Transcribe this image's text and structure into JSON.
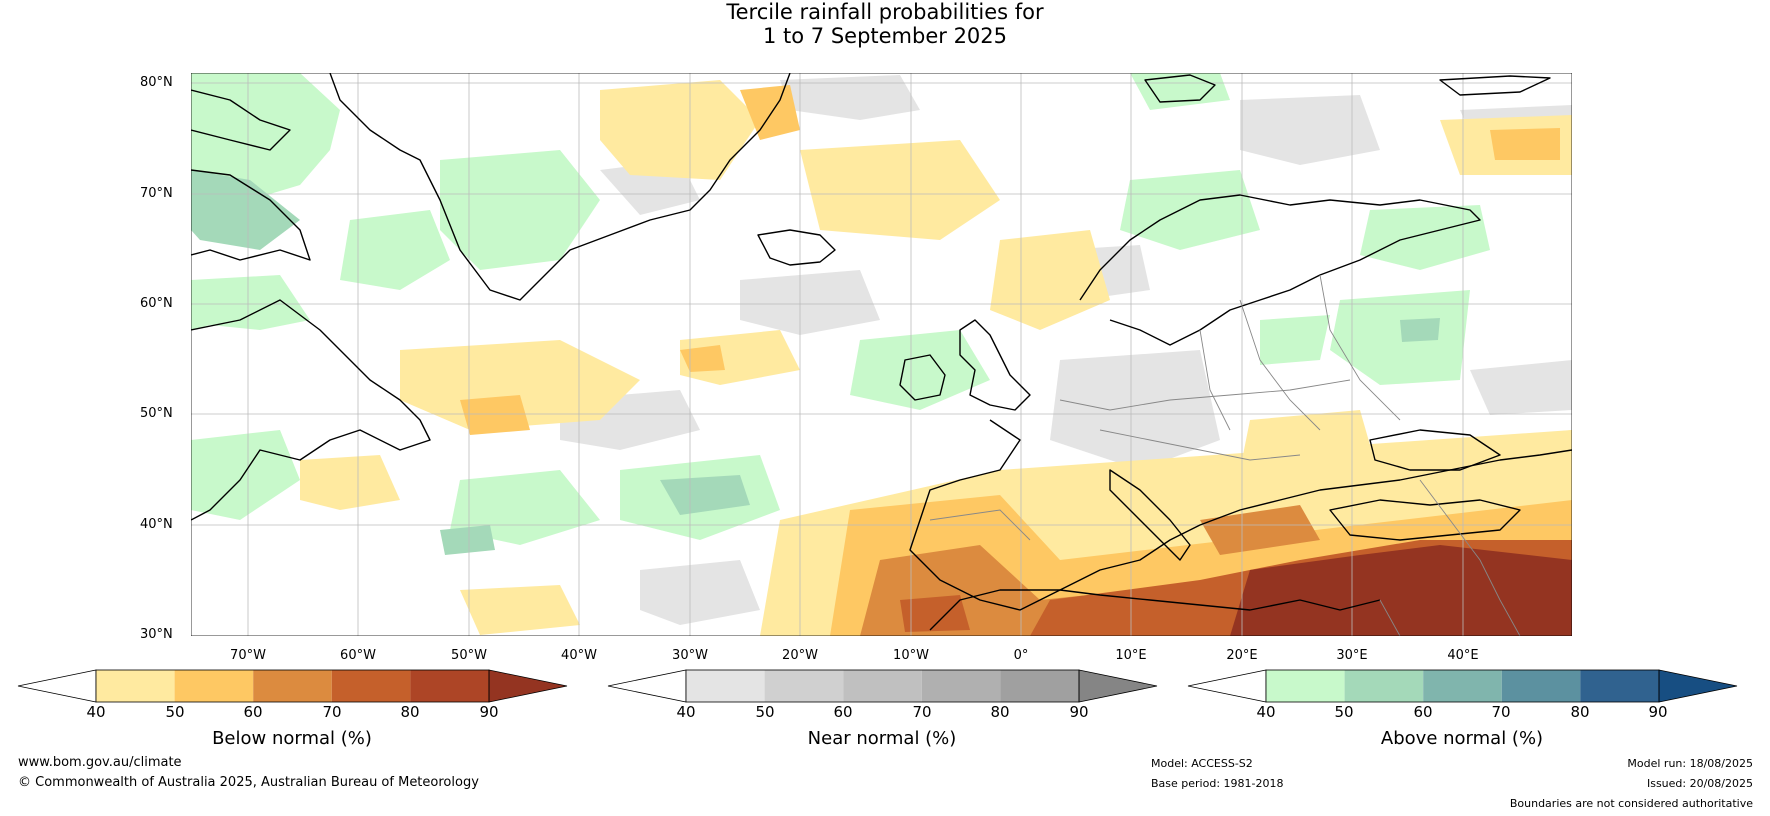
{
  "title": {
    "line1": "Tercile rainfall probabilities for",
    "line2": "1 to 7 September 2025"
  },
  "axes": {
    "lat_labels": [
      "80°N",
      "70°N",
      "60°N",
      "50°N",
      "40°N",
      "30°N"
    ],
    "lon_labels": [
      "70°W",
      "60°W",
      "50°W",
      "40°W",
      "30°W",
      "20°W",
      "10°W",
      "0°",
      "10°E",
      "20°E",
      "30°E",
      "40°E"
    ]
  },
  "colorbars": [
    {
      "title": "Below normal (%)",
      "ticks": [
        "40",
        "50",
        "60",
        "70",
        "80",
        "90"
      ],
      "colors": [
        "#ffffff",
        "#ffeaa0",
        "#fec863",
        "#dc8b3f",
        "#c5602b",
        "#ad4526",
        "#943421"
      ]
    },
    {
      "title": "Near normal (%)",
      "ticks": [
        "40",
        "50",
        "60",
        "70",
        "80",
        "90"
      ],
      "colors": [
        "#ffffff",
        "#e4e4e4",
        "#d0d0d0",
        "#c0c0c0",
        "#b0b0b0",
        "#a0a0a0",
        "#858585"
      ]
    },
    {
      "title": "Above normal (%)",
      "ticks": [
        "40",
        "50",
        "60",
        "70",
        "80",
        "90"
      ],
      "colors": [
        "#ffffff",
        "#c8f9cb",
        "#a4d9b9",
        "#80b5ad",
        "#5c91a0",
        "#30628f",
        "#174e82"
      ]
    }
  ],
  "footer": {
    "website": "www.bom.gov.au/climate",
    "copyright": "© Commonwealth of Australia 2025, Australian Bureau of Meteorology",
    "model": "Model: ACCESS-S2",
    "base_period": "Base period: 1981-2018",
    "model_run": "Model run: 18/08/2025",
    "issued": "Issued: 20/08/2025",
    "disclaimer": "Boundaries are not considered authoritative"
  }
}
